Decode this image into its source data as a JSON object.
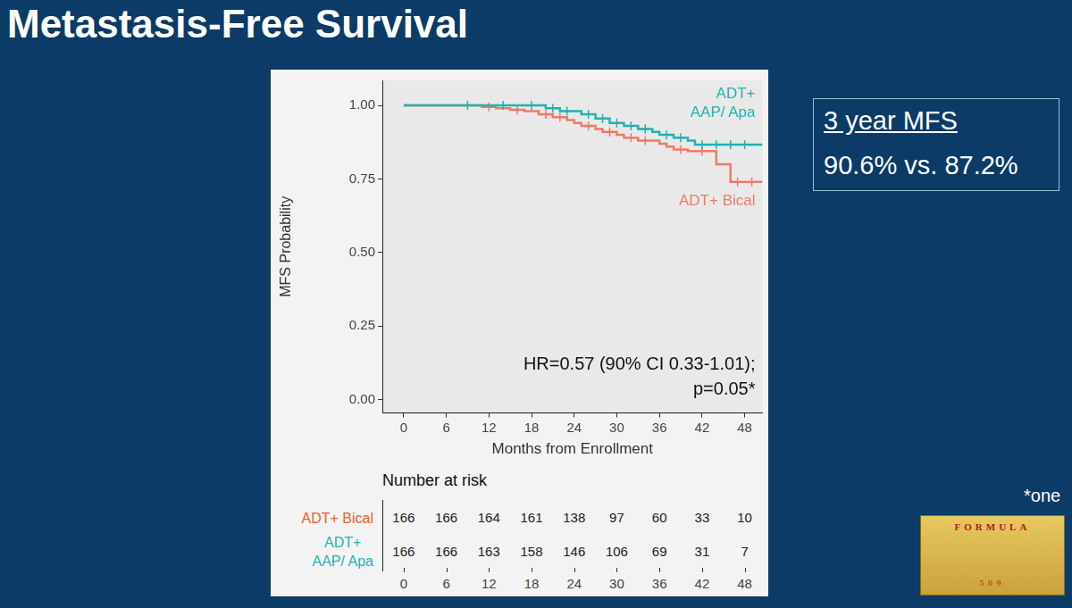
{
  "title": "Metastasis-Free Survival",
  "chart_data": {
    "type": "line",
    "x_label": "Months from Enrollment",
    "y_label": "MFS Probability",
    "xlim": [
      -3,
      50.5
    ],
    "ylim": [
      -0.045,
      1.085
    ],
    "xticks": [
      0,
      6,
      12,
      18,
      24,
      30,
      36,
      42,
      48
    ],
    "yticks": [
      {
        "value": 0,
        "label": "0.00"
      },
      {
        "value": 0.25,
        "label": "0.25"
      },
      {
        "value": 0.5,
        "label": "0.50"
      },
      {
        "value": 0.75,
        "label": "0.75"
      },
      {
        "value": 1,
        "label": "1.00"
      }
    ],
    "grid": false,
    "series": [
      {
        "name": "ADT+ AAP/ Apa",
        "color": "#1fb3b3",
        "line_style": "step",
        "marker": "plus",
        "x": [
          0,
          20,
          22,
          25,
          27,
          29,
          31,
          33,
          35,
          36,
          38,
          40,
          41,
          50.5
        ],
        "y": [
          1,
          0.99,
          0.98,
          0.97,
          0.955,
          0.94,
          0.93,
          0.92,
          0.91,
          0.9,
          0.89,
          0.88,
          0.867,
          0.867
        ],
        "censored": {
          "x": [
            9,
            14,
            18,
            21,
            23,
            26,
            28,
            30,
            32,
            34,
            37,
            39,
            42,
            44,
            46,
            48
          ],
          "y": [
            1,
            1,
            1,
            0.99,
            0.98,
            0.97,
            0.955,
            0.94,
            0.93,
            0.92,
            0.9,
            0.89,
            0.867,
            0.867,
            0.867,
            0.867
          ]
        }
      },
      {
        "name": "ADT+ Bical",
        "color": "#ee7a68",
        "line_style": "step",
        "marker": "plus",
        "x": [
          0,
          11,
          13,
          15,
          17,
          19,
          21,
          23,
          24,
          25,
          27,
          28,
          30,
          31,
          33,
          36,
          37,
          38,
          40,
          44,
          46,
          50.5
        ],
        "y": [
          1,
          0.995,
          0.99,
          0.985,
          0.98,
          0.97,
          0.96,
          0.95,
          0.94,
          0.93,
          0.92,
          0.91,
          0.9,
          0.89,
          0.88,
          0.87,
          0.86,
          0.85,
          0.845,
          0.8,
          0.74,
          0.74
        ],
        "censored": {
          "x": [
            12,
            16,
            20,
            22,
            26,
            29,
            32,
            34,
            39,
            42,
            47,
            49
          ],
          "y": [
            0.995,
            0.985,
            0.97,
            0.96,
            0.93,
            0.91,
            0.89,
            0.88,
            0.85,
            0.845,
            0.74,
            0.74
          ]
        }
      }
    ],
    "annotation": [
      "HR=0.57 (90% CI 0.33-1.01);",
      "p=0.05*"
    ]
  },
  "risk_table": {
    "title": "Number at risk",
    "times": [
      0,
      6,
      12,
      18,
      24,
      30,
      36,
      42,
      48
    ],
    "rows": [
      {
        "name": "ADT+ Bical",
        "color": "#e8622e",
        "values": [
          166,
          166,
          164,
          161,
          138,
          97,
          60,
          33,
          10
        ]
      },
      {
        "name": "ADT+ AAP/ Apa",
        "color": "#1fb3b3",
        "values": [
          166,
          166,
          163,
          158,
          146,
          106,
          69,
          31,
          7
        ]
      }
    ]
  },
  "summary_box": {
    "heading": "3 year MFS",
    "text": "90.6% vs. 87.2%"
  },
  "footnote": "*one",
  "logo": {
    "text": "FORMULA",
    "number": "509"
  }
}
